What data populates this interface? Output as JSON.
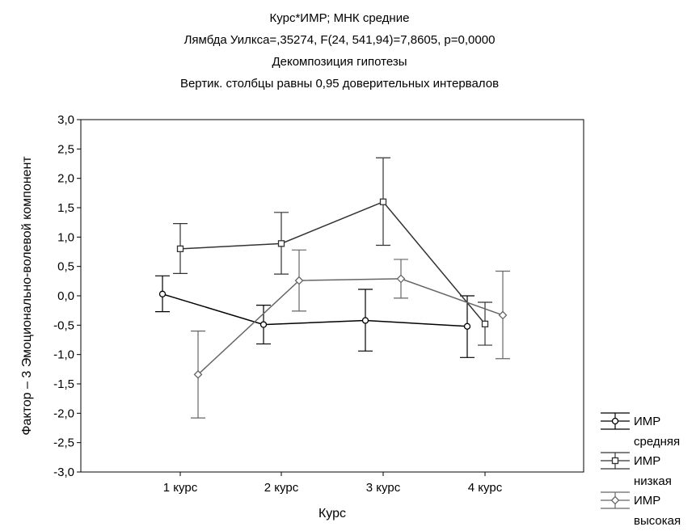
{
  "chart_data": {
    "type": "line",
    "title_lines": [
      "Курс*ИМР; МНК средние",
      "Лямбда Уилкса=,35274, F(24, 541,94)=7,8605, p=0,0000",
      "Декомпозиция гипотезы",
      "Вертик. столбцы равны 0,95 доверительных интервалов"
    ],
    "xlabel": "Курс",
    "ylabel": "Фактор – 3 Эмоционально-волевой компонент",
    "categories": [
      "1 курс",
      "2 курс",
      "3 курс",
      "4 курс"
    ],
    "ylim": [
      -3.0,
      3.0
    ],
    "yticks": [
      "3,0",
      "2,5",
      "2,0",
      "1,5",
      "1,0",
      "0,5",
      "0,0",
      "-0,5",
      "-1,0",
      "-1,5",
      "-2,0",
      "-2,5",
      "-3,0"
    ],
    "ytick_values": [
      3.0,
      2.5,
      2.0,
      1.5,
      1.0,
      0.5,
      0.0,
      -0.5,
      -1.0,
      -1.5,
      -2.0,
      -2.5,
      -3.0
    ],
    "grid": false,
    "legend_position": "bottom-right",
    "series": [
      {
        "name_lines": [
          "ИМР",
          "средняя"
        ],
        "marker": "circle",
        "color": "#000000",
        "values": [
          0.03,
          -0.49,
          -0.42,
          -0.52
        ],
        "ci_low": [
          -0.27,
          -0.82,
          -0.94,
          -1.05
        ],
        "ci_high": [
          0.34,
          -0.16,
          0.11,
          0.0
        ]
      },
      {
        "name_lines": [
          "ИМР",
          "низкая"
        ],
        "marker": "square",
        "color": "#333333",
        "values": [
          0.8,
          0.89,
          1.6,
          -0.48
        ],
        "ci_low": [
          0.38,
          0.37,
          0.86,
          -0.84
        ],
        "ci_high": [
          1.23,
          1.42,
          2.35,
          -0.11
        ]
      },
      {
        "name_lines": [
          "ИМР",
          "высокая"
        ],
        "marker": "diamond",
        "color": "#666666",
        "values": [
          -1.34,
          0.26,
          0.29,
          -0.33
        ],
        "ci_low": [
          -2.08,
          -0.26,
          -0.04,
          -1.07
        ],
        "ci_high": [
          -0.6,
          0.78,
          0.62,
          0.42
        ]
      }
    ]
  }
}
